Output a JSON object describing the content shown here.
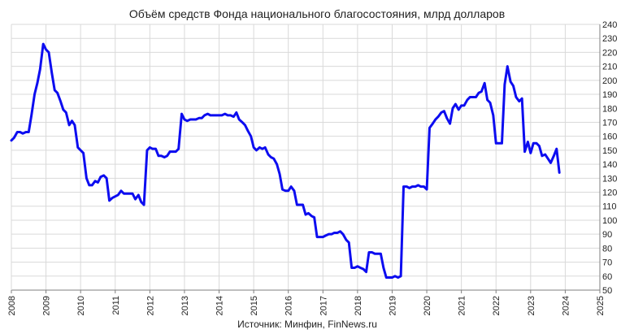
{
  "chart_data": {
    "type": "line",
    "title": "Объём средств Фонда национального благосостояния, млрд долларов",
    "source": "Источник: Минфин, FinNews.ru",
    "xlabel": "",
    "ylabel": "",
    "xlim": [
      2008,
      2025
    ],
    "ylim": [
      50,
      240
    ],
    "x_ticks": [
      "2008",
      "2009",
      "2010",
      "2011",
      "2012",
      "2013",
      "2014",
      "2015",
      "2016",
      "2017",
      "2018",
      "2019",
      "2020",
      "2021",
      "2022",
      "2023",
      "2024",
      "2025"
    ],
    "y_ticks": [
      "50",
      "60",
      "70",
      "80",
      "90",
      "100",
      "110",
      "120",
      "130",
      "140",
      "150",
      "160",
      "170",
      "180",
      "190",
      "200",
      "210",
      "220",
      "230",
      "240"
    ],
    "grid": true,
    "legend": "none",
    "colors": {
      "line": "#0d0df0",
      "grid": "#d9d9d9",
      "axis": "#7f7f7f"
    },
    "series": [
      {
        "points": [
          [
            2008.0,
            157
          ],
          [
            2008.08,
            159
          ],
          [
            2008.17,
            163
          ],
          [
            2008.25,
            163
          ],
          [
            2008.33,
            162
          ],
          [
            2008.42,
            163
          ],
          [
            2008.5,
            163
          ],
          [
            2008.58,
            175
          ],
          [
            2008.67,
            190
          ],
          [
            2008.75,
            198
          ],
          [
            2008.83,
            208
          ],
          [
            2008.92,
            226
          ],
          [
            2009.0,
            222
          ],
          [
            2009.08,
            220
          ],
          [
            2009.17,
            205
          ],
          [
            2009.25,
            193
          ],
          [
            2009.33,
            191
          ],
          [
            2009.42,
            185
          ],
          [
            2009.5,
            179
          ],
          [
            2009.58,
            177
          ],
          [
            2009.67,
            168
          ],
          [
            2009.75,
            171
          ],
          [
            2009.83,
            168
          ],
          [
            2009.92,
            152
          ],
          [
            2010.0,
            150
          ],
          [
            2010.08,
            148
          ],
          [
            2010.17,
            130
          ],
          [
            2010.25,
            125
          ],
          [
            2010.33,
            125
          ],
          [
            2010.42,
            128
          ],
          [
            2010.5,
            127
          ],
          [
            2010.58,
            131
          ],
          [
            2010.67,
            132
          ],
          [
            2010.75,
            130
          ],
          [
            2010.83,
            114
          ],
          [
            2010.92,
            116
          ],
          [
            2011.0,
            117
          ],
          [
            2011.08,
            118
          ],
          [
            2011.17,
            121
          ],
          [
            2011.25,
            119
          ],
          [
            2011.33,
            119
          ],
          [
            2011.42,
            119
          ],
          [
            2011.5,
            119
          ],
          [
            2011.58,
            115
          ],
          [
            2011.67,
            118
          ],
          [
            2011.75,
            113
          ],
          [
            2011.83,
            111
          ],
          [
            2011.92,
            150
          ],
          [
            2012.0,
            152
          ],
          [
            2012.08,
            151
          ],
          [
            2012.17,
            151
          ],
          [
            2012.25,
            146
          ],
          [
            2012.33,
            146
          ],
          [
            2012.42,
            145
          ],
          [
            2012.5,
            146
          ],
          [
            2012.58,
            149
          ],
          [
            2012.67,
            149
          ],
          [
            2012.75,
            149
          ],
          [
            2012.83,
            151
          ],
          [
            2012.92,
            176
          ],
          [
            2013.0,
            172
          ],
          [
            2013.08,
            171
          ],
          [
            2013.17,
            172
          ],
          [
            2013.25,
            172
          ],
          [
            2013.33,
            172
          ],
          [
            2013.42,
            173
          ],
          [
            2013.5,
            173
          ],
          [
            2013.58,
            175
          ],
          [
            2013.67,
            176
          ],
          [
            2013.75,
            175
          ],
          [
            2013.83,
            175
          ],
          [
            2013.92,
            175
          ],
          [
            2014.0,
            175
          ],
          [
            2014.08,
            175
          ],
          [
            2014.17,
            176
          ],
          [
            2014.25,
            175
          ],
          [
            2014.33,
            175
          ],
          [
            2014.42,
            174
          ],
          [
            2014.5,
            177
          ],
          [
            2014.58,
            172
          ],
          [
            2014.67,
            170
          ],
          [
            2014.75,
            168
          ],
          [
            2014.83,
            164
          ],
          [
            2014.92,
            160
          ],
          [
            2015.0,
            152
          ],
          [
            2015.08,
            150
          ],
          [
            2015.17,
            152
          ],
          [
            2015.25,
            151
          ],
          [
            2015.33,
            152
          ],
          [
            2015.42,
            147
          ],
          [
            2015.5,
            145
          ],
          [
            2015.58,
            144
          ],
          [
            2015.67,
            140
          ],
          [
            2015.75,
            133
          ],
          [
            2015.83,
            122
          ],
          [
            2015.92,
            121
          ],
          [
            2016.0,
            121
          ],
          [
            2016.08,
            124
          ],
          [
            2016.17,
            121
          ],
          [
            2016.25,
            111
          ],
          [
            2016.33,
            111
          ],
          [
            2016.42,
            111
          ],
          [
            2016.5,
            104
          ],
          [
            2016.58,
            105
          ],
          [
            2016.67,
            103
          ],
          [
            2016.75,
            102
          ],
          [
            2016.83,
            88
          ],
          [
            2016.92,
            88
          ],
          [
            2017.0,
            88
          ],
          [
            2017.08,
            89
          ],
          [
            2017.17,
            90
          ],
          [
            2017.25,
            90
          ],
          [
            2017.33,
            91
          ],
          [
            2017.42,
            91
          ],
          [
            2017.5,
            92
          ],
          [
            2017.58,
            90
          ],
          [
            2017.67,
            86
          ],
          [
            2017.75,
            84
          ],
          [
            2017.83,
            66
          ],
          [
            2017.92,
            66
          ],
          [
            2018.0,
            67
          ],
          [
            2018.08,
            66
          ],
          [
            2018.17,
            65
          ],
          [
            2018.25,
            63
          ],
          [
            2018.33,
            77
          ],
          [
            2018.42,
            77
          ],
          [
            2018.5,
            76
          ],
          [
            2018.58,
            76
          ],
          [
            2018.67,
            76
          ],
          [
            2018.75,
            66
          ],
          [
            2018.83,
            59
          ],
          [
            2018.92,
            59
          ],
          [
            2019.0,
            59
          ],
          [
            2019.08,
            60
          ],
          [
            2019.17,
            59
          ],
          [
            2019.25,
            60
          ],
          [
            2019.33,
            124
          ],
          [
            2019.42,
            124
          ],
          [
            2019.5,
            123
          ],
          [
            2019.58,
            124
          ],
          [
            2019.67,
            124
          ],
          [
            2019.75,
            125
          ],
          [
            2019.83,
            124
          ],
          [
            2019.92,
            124
          ],
          [
            2020.0,
            122
          ],
          [
            2020.08,
            166
          ],
          [
            2020.17,
            169
          ],
          [
            2020.25,
            172
          ],
          [
            2020.33,
            174
          ],
          [
            2020.42,
            177
          ],
          [
            2020.5,
            178
          ],
          [
            2020.58,
            173
          ],
          [
            2020.67,
            169
          ],
          [
            2020.75,
            180
          ],
          [
            2020.83,
            183
          ],
          [
            2020.92,
            179
          ],
          [
            2021.0,
            182
          ],
          [
            2021.08,
            182
          ],
          [
            2021.17,
            186
          ],
          [
            2021.25,
            188
          ],
          [
            2021.33,
            188
          ],
          [
            2021.42,
            188
          ],
          [
            2021.5,
            191
          ],
          [
            2021.58,
            192
          ],
          [
            2021.67,
            198
          ],
          [
            2021.75,
            186
          ],
          [
            2021.83,
            184
          ],
          [
            2021.92,
            175
          ],
          [
            2022.0,
            155
          ],
          [
            2022.08,
            155
          ],
          [
            2022.17,
            155
          ],
          [
            2022.25,
            197
          ],
          [
            2022.33,
            210
          ],
          [
            2022.42,
            199
          ],
          [
            2022.5,
            196
          ],
          [
            2022.58,
            188
          ],
          [
            2022.67,
            185
          ],
          [
            2022.75,
            187
          ],
          [
            2022.83,
            149
          ],
          [
            2022.92,
            156
          ],
          [
            2023.0,
            148
          ],
          [
            2023.08,
            155
          ],
          [
            2023.17,
            155
          ],
          [
            2023.25,
            153
          ],
          [
            2023.33,
            146
          ],
          [
            2023.42,
            147
          ],
          [
            2023.5,
            144
          ],
          [
            2023.58,
            141
          ],
          [
            2023.67,
            146
          ],
          [
            2023.75,
            151
          ],
          [
            2023.83,
            134
          ]
        ]
      }
    ]
  }
}
